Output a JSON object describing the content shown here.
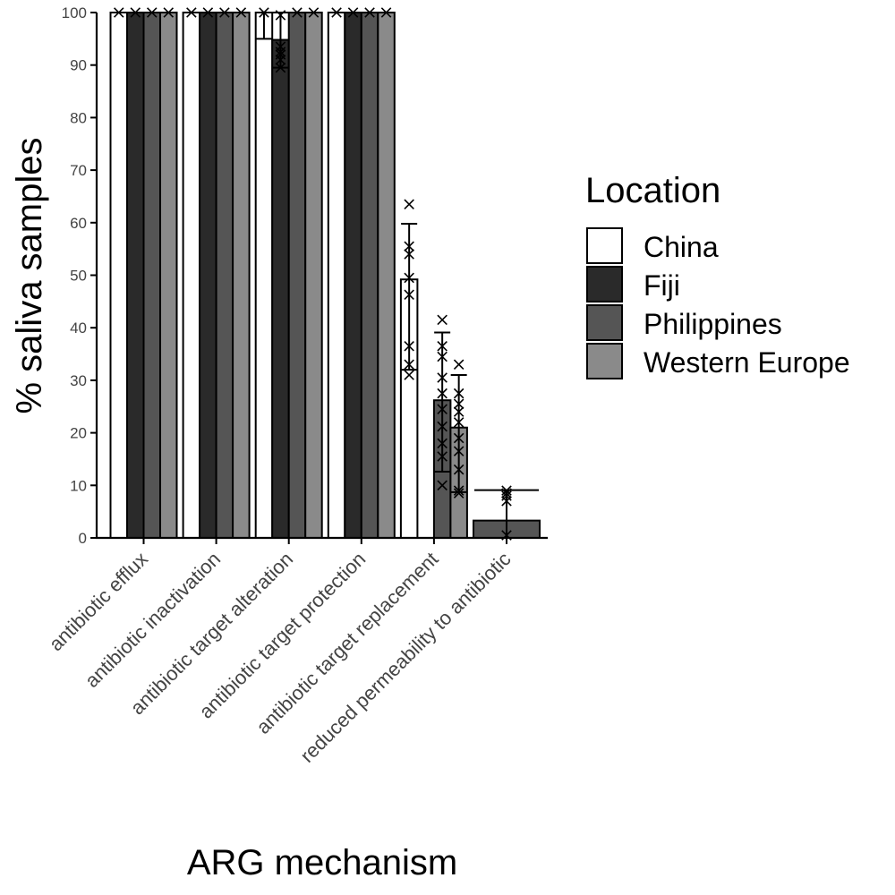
{
  "chart_data": {
    "type": "bar",
    "title": "",
    "xlabel": "ARG mechanism",
    "ylabel": "% saliva samples",
    "ylim": [
      0,
      100
    ],
    "yticks": [
      0,
      10,
      20,
      30,
      40,
      50,
      60,
      70,
      80,
      90,
      100
    ],
    "grid": false,
    "legend": {
      "title": "Location",
      "placement": "right",
      "entries": [
        "China",
        "Fiji",
        "Philippines",
        "Western Europe"
      ]
    },
    "colors": {
      "China": "#FFFFFF",
      "Fiji": "#2A2A2A",
      "Philippines": "#555555",
      "Western Europe": "#8A8A8A"
    },
    "categories": [
      "antibiotic efflux",
      "antibiotic inactivation",
      "antibiotic target alteration",
      "antibiotic target protection",
      "antibiotic target replacement",
      "reduced permeability to antibiotic"
    ],
    "series": [
      {
        "name": "China",
        "values": [
          100,
          100,
          100,
          100,
          49.2,
          null
        ],
        "error": [
          null,
          null,
          [
            95,
            100
          ],
          null,
          [
            32,
            59.8
          ],
          null
        ],
        "points": [
          [
            100
          ],
          [
            100
          ],
          [
            100
          ],
          [
            100
          ],
          [
            31,
            33,
            36.5,
            46.3,
            49.5,
            54,
            55.5,
            63.5
          ],
          []
        ]
      },
      {
        "name": "Fiji",
        "values": [
          100,
          100,
          94.8,
          100,
          null,
          null
        ],
        "error": [
          null,
          null,
          [
            89.5,
            100
          ],
          null,
          null,
          null
        ],
        "points": [
          [
            100
          ],
          [
            100
          ],
          [
            89.5,
            91,
            92,
            92.5,
            93.5,
            99.5
          ],
          [
            100
          ],
          [],
          []
        ]
      },
      {
        "name": "Philippines",
        "values": [
          100,
          100,
          100,
          100,
          26.2,
          3.3
        ],
        "error": [
          null,
          null,
          null,
          null,
          [
            12.6,
            39.1
          ],
          [
            0,
            9.1
          ]
        ],
        "points": [
          [
            100
          ],
          [
            100
          ],
          [
            100
          ],
          [
            100
          ],
          [
            10,
            15.5,
            18,
            21.2,
            24.5,
            27.5,
            30.5,
            34.5,
            36.5,
            41.5
          ],
          [
            0.5,
            7,
            8,
            8.5,
            9
          ]
        ]
      },
      {
        "name": "Western Europe",
        "values": [
          100,
          100,
          100,
          100,
          21,
          null
        ],
        "error": [
          null,
          null,
          null,
          null,
          [
            8.7,
            31
          ],
          null
        ],
        "points": [
          [
            100
          ],
          [
            100
          ],
          [
            100
          ],
          [
            100
          ],
          [
            8.5,
            9,
            13,
            16.5,
            19,
            22,
            24,
            25.5,
            27.5,
            33
          ],
          []
        ]
      }
    ]
  }
}
